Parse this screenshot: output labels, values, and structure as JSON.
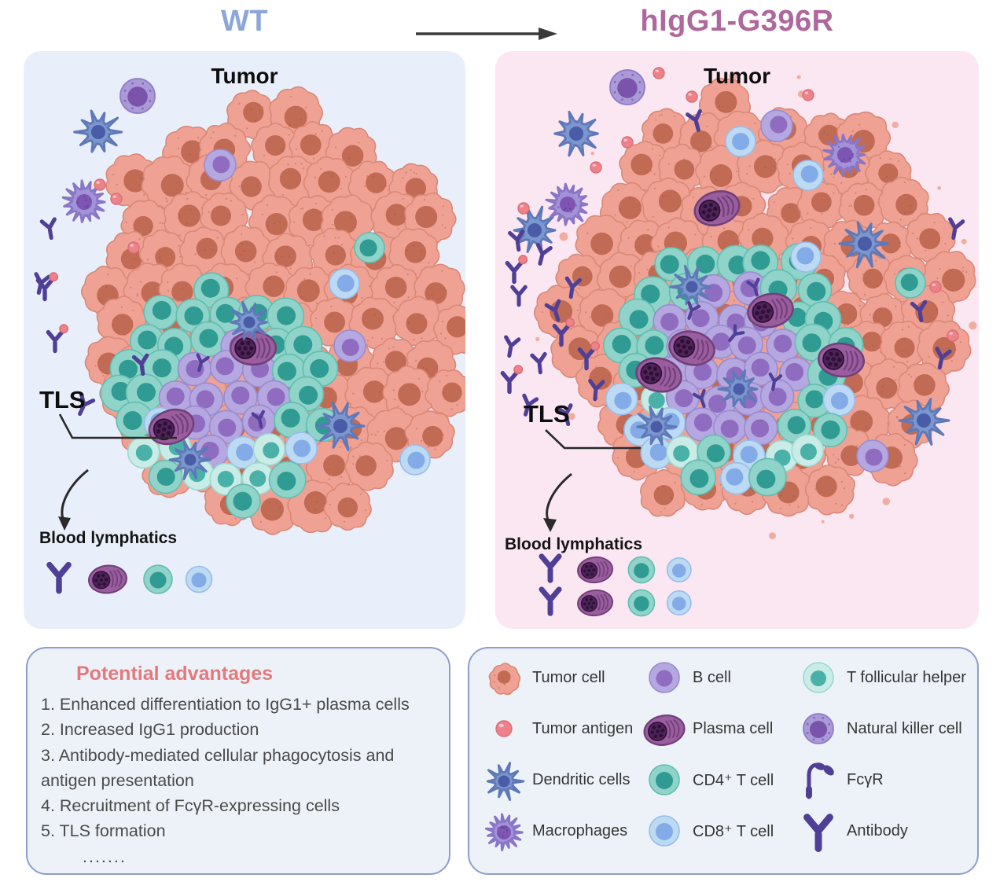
{
  "header": {
    "left_title": "WT",
    "right_title": "hIgG1-G396R"
  },
  "panels": {
    "wt": {
      "tumor_label": "Tumor",
      "tls_label": "TLS",
      "lymphatics_label": "Blood lymphatics"
    },
    "g396r": {
      "tumor_label": "Tumor",
      "tls_label": "TLS",
      "lymphatics_label": "Blood lymphatics"
    }
  },
  "advantages": {
    "title": "Potential advantages",
    "items": [
      "1. Enhanced differentiation to IgG1+ plasma cells",
      "2. Increased IgG1 production",
      "3. Antibody-mediated cellular phagocytosis and antigen presentation",
      "4. Recruitment of FcγR-expressing cells",
      "5. TLS formation"
    ],
    "ellipsis": "......."
  },
  "legend": {
    "items": [
      {
        "icon": "tumor-cell-icon",
        "label": "Tumor cell"
      },
      {
        "icon": "b-cell-icon",
        "label": "B cell"
      },
      {
        "icon": "t-follicular-helper-icon",
        "label": "T follicular helper"
      },
      {
        "icon": "tumor-antigen-icon",
        "label": "Tumor antigen"
      },
      {
        "icon": "plasma-cell-icon",
        "label": "Plasma cell"
      },
      {
        "icon": "natural-killer-cell-icon",
        "label": "Natural killer cell"
      },
      {
        "icon": "dendritic-cells-icon",
        "label": "Dendritic cells"
      },
      {
        "icon": "cd4-t-cell-icon",
        "label": "CD4⁺ T cell"
      },
      {
        "icon": "fcgr-icon",
        "label": "FcγR"
      },
      {
        "icon": "macrophages-icon",
        "label": "Macrophages"
      },
      {
        "icon": "cd8-t-cell-icon",
        "label": "CD8⁺ T cell"
      },
      {
        "icon": "antibody-icon",
        "label": "Antibody"
      }
    ]
  },
  "colors": {
    "wt_title": "#8ca6d8",
    "g396r_title": "#ae689d",
    "arrow": "#3a3a3a",
    "panel_wt_bg": "#e9effa",
    "panel_g396r_bg": "#fbe7f2",
    "box_bg": "#edf2f9",
    "box_border": "#8c9ecb",
    "advantages_title": "#e4797d",
    "advantages_text": "#4a4a4a",
    "tumor_body": "#efa293",
    "tumor_edge": "#da8878",
    "tumor_nuc": "#c16a54",
    "cd4_body": "#8fd3c9",
    "cd4_edge": "#62bdb1",
    "cd4_nuc": "#2f9b92",
    "cd8_body": "#bcdaf3",
    "cd8_edge": "#98bde9",
    "cd8_nuc": "#83abe7",
    "tfh_body": "#c9ece6",
    "tfh_edge": "#9cd8cf",
    "tfh_nuc": "#4ab1a8",
    "b_body": "#b5a7e0",
    "b_edge": "#998bcf",
    "b_nuc": "#8f6cc0",
    "plasma_body": "#9a5d9e",
    "plasma_edge": "#71407a",
    "plasma_core": "#4f2458",
    "plasma_dark": "#2e1038",
    "dc_body": "#7b97cd",
    "dc_edge": "#5f79b8",
    "dc_nuc": "#4a5ba8",
    "mp_body": "#a292d8",
    "mp_edge": "#8a76c6",
    "mp_nuc": "#7e55b2",
    "nk_body": "#ab9ad8",
    "nk_edge": "#8f7cc7",
    "nk_nuc": "#7a54ab",
    "antibody": "#4f3f96",
    "antigen": "#ee828a",
    "antigen_edge": "#d96e77",
    "pointer": "#2a2a2a"
  }
}
